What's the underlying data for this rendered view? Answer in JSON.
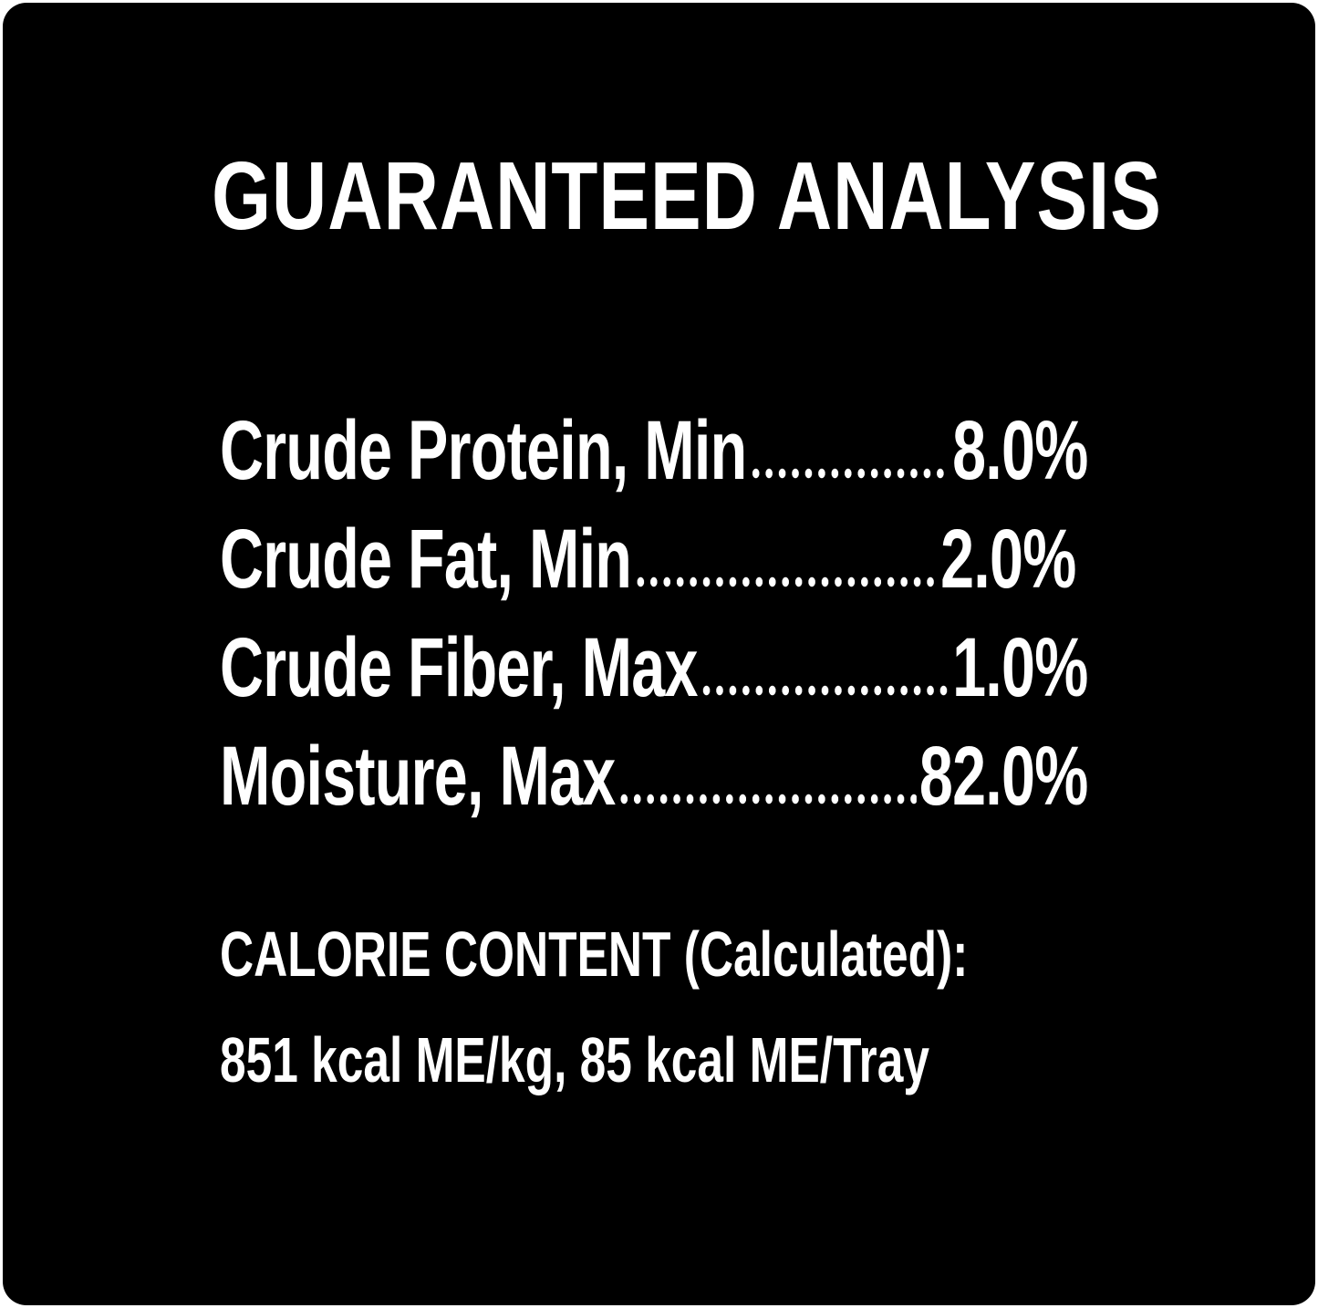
{
  "title": "GUARANTEED ANALYSIS",
  "analysis": [
    {
      "label": "Crude Protein, Min",
      "value": "8.0%"
    },
    {
      "label": "Crude Fat, Min",
      "value": "2.0%"
    },
    {
      "label": "Crude Fiber, Max",
      "value": "1.0%"
    },
    {
      "label": "Moisture, Max",
      "value": "82.0%"
    }
  ],
  "calorie": {
    "heading": "CALORIE CONTENT (Calculated):",
    "value": "851 kcal ME/kg, 85 kcal ME/Tray"
  },
  "colors": {
    "background": "#000000",
    "text": "#ffffff"
  }
}
